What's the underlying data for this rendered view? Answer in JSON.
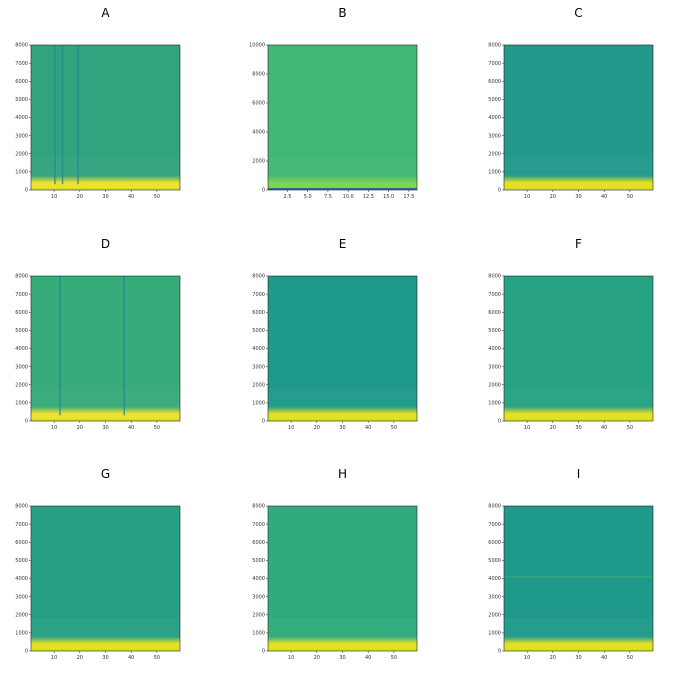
{
  "chart_data": [
    {
      "type": "heatmap",
      "title": "A",
      "ylim": [
        0,
        8000
      ],
      "yticks": [
        0,
        1000,
        2000,
        3000,
        4000,
        5000,
        6000,
        7000,
        8000
      ],
      "ytick_labels": [
        "0",
        "1000",
        "2000",
        "3000",
        "4000",
        "5000",
        "6000",
        "7000",
        "8000"
      ],
      "xlim": [
        1,
        59
      ],
      "xticks": [
        10,
        20,
        30,
        40,
        50
      ],
      "xtick_labels": [
        "10",
        "20",
        "30",
        "40",
        "50"
      ],
      "base_color": "#33a37f",
      "low_band_color": "#f0df2b",
      "vertical_lines_at": [
        10,
        13,
        19
      ],
      "horizontal_lines_at": []
    },
    {
      "type": "heatmap",
      "title": "B",
      "ylim": [
        0,
        10000
      ],
      "yticks": [
        0,
        2000,
        4000,
        6000,
        8000,
        10000
      ],
      "ytick_labels": [
        "0",
        "2000",
        "4000",
        "6000",
        "8000",
        "10000"
      ],
      "xlim": [
        0.1,
        18.5
      ],
      "xticks": [
        2.5,
        5.0,
        7.5,
        10.0,
        12.5,
        15.0,
        17.5
      ],
      "xtick_labels": [
        "2.5",
        "5.0",
        "7.5",
        "10.0",
        "12.5",
        "15.0",
        "17.5"
      ],
      "base_color": "#41b873",
      "low_band_color": "#7dd34f",
      "vertical_lines_at": [],
      "horizontal_lines_at": []
    },
    {
      "type": "heatmap",
      "title": "C",
      "ylim": [
        0,
        8000
      ],
      "yticks": [
        0,
        1000,
        2000,
        3000,
        4000,
        5000,
        6000,
        7000,
        8000
      ],
      "ytick_labels": [
        "0",
        "1000",
        "2000",
        "3000",
        "4000",
        "5000",
        "6000",
        "7000",
        "8000"
      ],
      "xlim": [
        1,
        59
      ],
      "xticks": [
        10,
        20,
        30,
        40,
        50
      ],
      "xtick_labels": [
        "10",
        "20",
        "30",
        "40",
        "50"
      ],
      "base_color": "#22998a",
      "low_band_color": "#e5e01f",
      "vertical_lines_at": [],
      "horizontal_lines_at": []
    },
    {
      "type": "heatmap",
      "title": "D",
      "ylim": [
        0,
        8000
      ],
      "yticks": [
        0,
        1000,
        2000,
        3000,
        4000,
        5000,
        6000,
        7000,
        8000
      ],
      "ytick_labels": [
        "0",
        "1000",
        "2000",
        "3000",
        "4000",
        "5000",
        "6000",
        "7000",
        "8000"
      ],
      "xlim": [
        1,
        59
      ],
      "xticks": [
        10,
        20,
        30,
        40,
        50
      ],
      "xtick_labels": [
        "10",
        "20",
        "30",
        "40",
        "50"
      ],
      "base_color": "#38ab7a",
      "low_band_color": "#f0df2b",
      "vertical_lines_at": [
        12,
        37
      ],
      "horizontal_lines_at": []
    },
    {
      "type": "heatmap",
      "title": "E",
      "ylim": [
        0,
        8000
      ],
      "yticks": [
        0,
        1000,
        2000,
        3000,
        4000,
        5000,
        6000,
        7000,
        8000
      ],
      "ytick_labels": [
        "0",
        "1000",
        "2000",
        "3000",
        "4000",
        "5000",
        "6000",
        "7000",
        "8000"
      ],
      "xlim": [
        1,
        59
      ],
      "xticks": [
        10,
        20,
        30,
        40,
        50
      ],
      "xtick_labels": [
        "10",
        "20",
        "30",
        "40",
        "50"
      ],
      "base_color": "#1f9a8a",
      "low_band_color": "#e5e01f",
      "vertical_lines_at": [],
      "horizontal_lines_at": []
    },
    {
      "type": "heatmap",
      "title": "F",
      "ylim": [
        0,
        8000
      ],
      "yticks": [
        0,
        1000,
        2000,
        3000,
        4000,
        5000,
        6000,
        7000,
        8000
      ],
      "ytick_labels": [
        "0",
        "1000",
        "2000",
        "3000",
        "4000",
        "5000",
        "6000",
        "7000",
        "8000"
      ],
      "xlim": [
        1,
        59
      ],
      "xticks": [
        10,
        20,
        30,
        40,
        50
      ],
      "xtick_labels": [
        "10",
        "20",
        "30",
        "40",
        "50"
      ],
      "base_color": "#27a283",
      "low_band_color": "#e5e01f",
      "vertical_lines_at": [],
      "horizontal_lines_at": []
    },
    {
      "type": "heatmap",
      "title": "G",
      "ylim": [
        0,
        8000
      ],
      "yticks": [
        0,
        1000,
        2000,
        3000,
        4000,
        5000,
        6000,
        7000,
        8000
      ],
      "ytick_labels": [
        "0",
        "1000",
        "2000",
        "3000",
        "4000",
        "5000",
        "6000",
        "7000",
        "8000"
      ],
      "xlim": [
        1,
        59
      ],
      "xticks": [
        10,
        20,
        30,
        40,
        50
      ],
      "xtick_labels": [
        "10",
        "20",
        "30",
        "40",
        "50"
      ],
      "base_color": "#25a085",
      "low_band_color": "#e5e01f",
      "vertical_lines_at": [],
      "horizontal_lines_at": []
    },
    {
      "type": "heatmap",
      "title": "H",
      "ylim": [
        0,
        8000
      ],
      "yticks": [
        0,
        1000,
        2000,
        3000,
        4000,
        5000,
        6000,
        7000,
        8000
      ],
      "ytick_labels": [
        "0",
        "1000",
        "2000",
        "3000",
        "4000",
        "5000",
        "6000",
        "7000",
        "8000"
      ],
      "xlim": [
        1,
        59
      ],
      "xticks": [
        10,
        20,
        30,
        40,
        50
      ],
      "xtick_labels": [
        "10",
        "20",
        "30",
        "40",
        "50"
      ],
      "base_color": "#30ab7e",
      "low_band_color": "#e5e01f",
      "vertical_lines_at": [],
      "horizontal_lines_at": []
    },
    {
      "type": "heatmap",
      "title": "I",
      "ylim": [
        0,
        8000
      ],
      "yticks": [
        0,
        1000,
        2000,
        3000,
        4000,
        5000,
        6000,
        7000,
        8000
      ],
      "ytick_labels": [
        "0",
        "1000",
        "2000",
        "3000",
        "4000",
        "5000",
        "6000",
        "7000",
        "8000"
      ],
      "xlim": [
        1,
        59
      ],
      "xticks": [
        10,
        20,
        30,
        40,
        50
      ],
      "xtick_labels": [
        "10",
        "20",
        "30",
        "40",
        "50"
      ],
      "base_color": "#1f9a8a",
      "low_band_color": "#e5e01f",
      "vertical_lines_at": [],
      "horizontal_lines_at": [
        4100
      ]
    }
  ]
}
